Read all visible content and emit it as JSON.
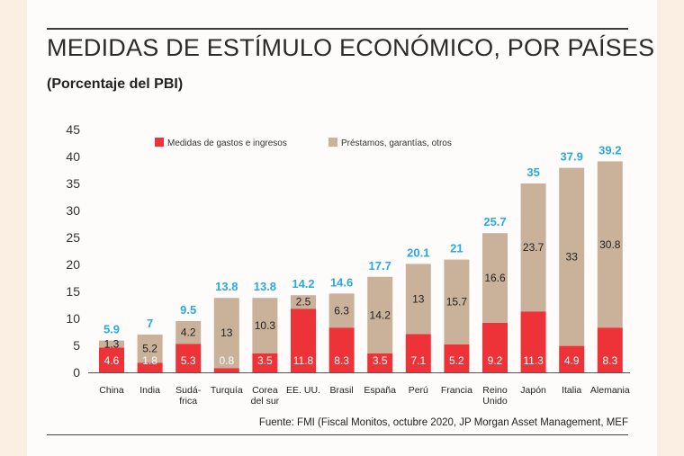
{
  "title": "MEDIDAS DE ESTÍMULO ECONÓMICO, POR PAÍSES",
  "subtitle": "(Porcentaje del PBI)",
  "source": "Fuente: FMI (Fiscal Monitos, octubre 2020, JP Morgan Asset Management, MEF",
  "colors": {
    "gastos": "#ee3338",
    "prestamos": "#c9b19a",
    "total_label": "#29a9e1",
    "axis": "#555555"
  },
  "chart_data": {
    "type": "bar",
    "stacked": true,
    "title": "MEDIDAS DE ESTÍMULO ECONÓMICO, POR PAÍSES",
    "ylabel": "Porcentaje del PBI",
    "xlabel": "",
    "ylim": [
      0,
      45
    ],
    "yticks": [
      0,
      5,
      10,
      15,
      20,
      25,
      30,
      35,
      40,
      45
    ],
    "legend_position": "top",
    "categories": [
      [
        "China"
      ],
      [
        "India"
      ],
      [
        "Sudá-",
        "frica"
      ],
      [
        "Turquía"
      ],
      [
        "Corea",
        "del sur"
      ],
      [
        "EE. UU."
      ],
      [
        "Brasil"
      ],
      [
        "España"
      ],
      [
        "Perú"
      ],
      [
        "Francia"
      ],
      [
        "Reino",
        "Unido"
      ],
      [
        "Japón"
      ],
      [
        "Italia"
      ],
      [
        "Alemania"
      ]
    ],
    "series": [
      {
        "name": "Medidas de gastos e ingresos",
        "values": [
          4.6,
          1.8,
          5.3,
          0.8,
          3.5,
          11.8,
          8.3,
          3.5,
          7.1,
          5.2,
          9.2,
          11.3,
          4.9,
          8.3
        ],
        "labels": [
          "4.6",
          "1.8",
          "5.3",
          "0.8",
          "3.5",
          "11.8",
          "8.3",
          "3.5",
          "7.1",
          "5.2",
          "9.2",
          "11.3",
          "4.9",
          "8.3"
        ]
      },
      {
        "name": "Préstamos, garantías, otros",
        "values": [
          1.3,
          5.2,
          4.2,
          13,
          10.3,
          2.5,
          6.3,
          14.2,
          13,
          15.7,
          16.6,
          23.7,
          33,
          30.8
        ],
        "labels": [
          "1.3",
          "5.2",
          "4.2",
          "13",
          "10.3",
          "2.5",
          "6.3",
          "14.2",
          "13",
          "15.7",
          "16.6",
          "23.7",
          "33",
          "30.8"
        ]
      }
    ],
    "totals": [
      5.9,
      7,
      9.5,
      13.8,
      13.8,
      14.2,
      14.6,
      17.7,
      20.1,
      21,
      25.7,
      35,
      37.9,
      39.2
    ],
    "total_labels": [
      "5.9",
      "7",
      "9.5",
      "13.8",
      "13.8",
      "14.2",
      "14.6",
      "17.7",
      "20.1",
      "21",
      "25.7",
      "35",
      "37.9",
      "39.2"
    ]
  }
}
